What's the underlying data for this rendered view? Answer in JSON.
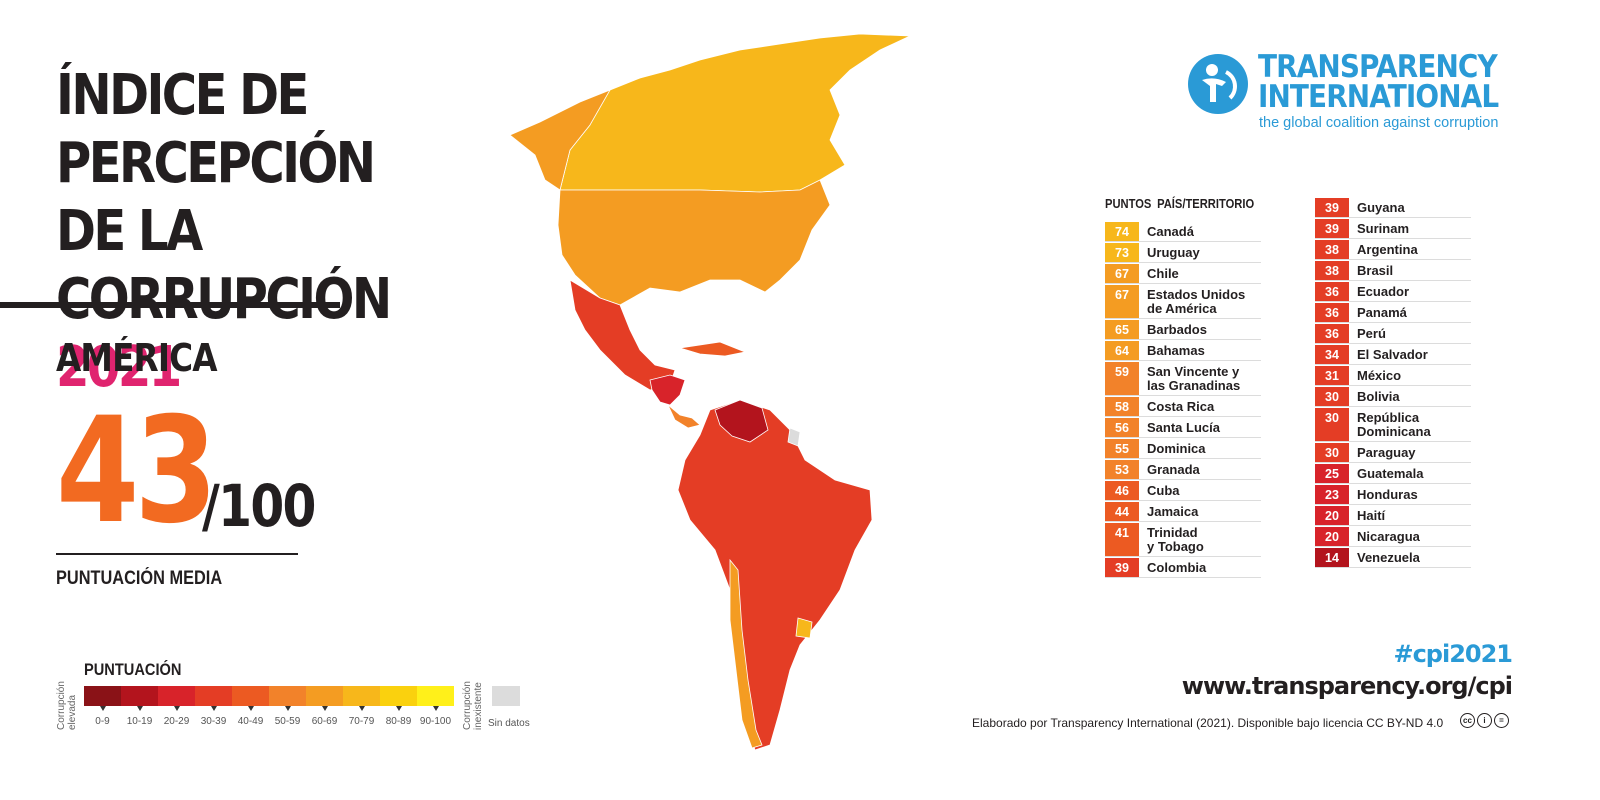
{
  "header": {
    "title_lines": [
      "ÍNDICE DE",
      "PERCEPCIÓN DE LA",
      "CORRUPCIÓN"
    ],
    "year": "2021"
  },
  "region": {
    "name": "AMÉRICA",
    "score": "43",
    "max": "/100",
    "score_label": "PUNTUACIÓN MEDIA"
  },
  "legend": {
    "title": "PUNTUACIÓN",
    "high_label": "Corrupción elevada",
    "low_label": "Corrupción inexistente",
    "no_data": "Sin datos",
    "ranges": [
      "0-9",
      "10-19",
      "20-29",
      "30-39",
      "40-49",
      "50-59",
      "60-69",
      "70-79",
      "80-89",
      "90-100"
    ],
    "colors": [
      "#8a1217",
      "#b3141d",
      "#d8232a",
      "#e43d25",
      "#ec5a22",
      "#f2822a",
      "#f49c22",
      "#f7b71b",
      "#fad10e",
      "#fff01a"
    ]
  },
  "logo": {
    "line1": "TRANSPARENCY",
    "line2": "INTERNATIONAL",
    "tagline": "the global coalition against corruption"
  },
  "table": {
    "header": "PUNTOS  PAÍS/TERRITORIO",
    "col1": [
      {
        "score": "74",
        "country": "Canadá",
        "color": "#f7b71b"
      },
      {
        "score": "73",
        "country": "Uruguay",
        "color": "#f7b71b"
      },
      {
        "score": "67",
        "country": "Chile",
        "color": "#f49c22"
      },
      {
        "score": "67",
        "country": "Estados Unidos\nde América",
        "color": "#f49c22"
      },
      {
        "score": "65",
        "country": "Barbados",
        "color": "#f49c22"
      },
      {
        "score": "64",
        "country": "Bahamas",
        "color": "#f49c22"
      },
      {
        "score": "59",
        "country": "San Vincente y\nlas Granadinas",
        "color": "#f2822a"
      },
      {
        "score": "58",
        "country": "Costa Rica",
        "color": "#f2822a"
      },
      {
        "score": "56",
        "country": "Santa Lucía",
        "color": "#f2822a"
      },
      {
        "score": "55",
        "country": "Dominica",
        "color": "#f2822a"
      },
      {
        "score": "53",
        "country": "Granada",
        "color": "#f2822a"
      },
      {
        "score": "46",
        "country": "Cuba",
        "color": "#ec5a22"
      },
      {
        "score": "44",
        "country": "Jamaica",
        "color": "#ec5a22"
      },
      {
        "score": "41",
        "country": "Trinidad\ny Tobago",
        "color": "#ec5a22"
      },
      {
        "score": "39",
        "country": "Colombia",
        "color": "#e43d25"
      }
    ],
    "col2": [
      {
        "score": "39",
        "country": "Guyana",
        "color": "#e43d25"
      },
      {
        "score": "39",
        "country": "Surinam",
        "color": "#e43d25"
      },
      {
        "score": "38",
        "country": "Argentina",
        "color": "#e43d25"
      },
      {
        "score": "38",
        "country": "Brasil",
        "color": "#e43d25"
      },
      {
        "score": "36",
        "country": "Ecuador",
        "color": "#e43d25"
      },
      {
        "score": "36",
        "country": "Panamá",
        "color": "#e43d25"
      },
      {
        "score": "36",
        "country": "Perú",
        "color": "#e43d25"
      },
      {
        "score": "34",
        "country": "El Salvador",
        "color": "#e43d25"
      },
      {
        "score": "31",
        "country": "México",
        "color": "#e43d25"
      },
      {
        "score": "30",
        "country": "Bolivia",
        "color": "#e43d25"
      },
      {
        "score": "30",
        "country": "República\nDominicana",
        "color": "#e43d25"
      },
      {
        "score": "30",
        "country": "Paraguay",
        "color": "#e43d25"
      },
      {
        "score": "25",
        "country": "Guatemala",
        "color": "#d8232a"
      },
      {
        "score": "23",
        "country": "Honduras",
        "color": "#d8232a"
      },
      {
        "score": "20",
        "country": "Haití",
        "color": "#d8232a"
      },
      {
        "score": "20",
        "country": "Nicaragua",
        "color": "#d8232a"
      },
      {
        "score": "14",
        "country": "Venezuela",
        "color": "#b3141d"
      }
    ]
  },
  "footer": {
    "hashtag": "#cpi2021",
    "url": "www.transparency.org/cpi",
    "credit": "Elaborado por Transparency International (2021). Disponible bajo licencia CC BY-ND 4.0",
    "cc_icons": [
      "cc",
      "by",
      "nd"
    ]
  }
}
